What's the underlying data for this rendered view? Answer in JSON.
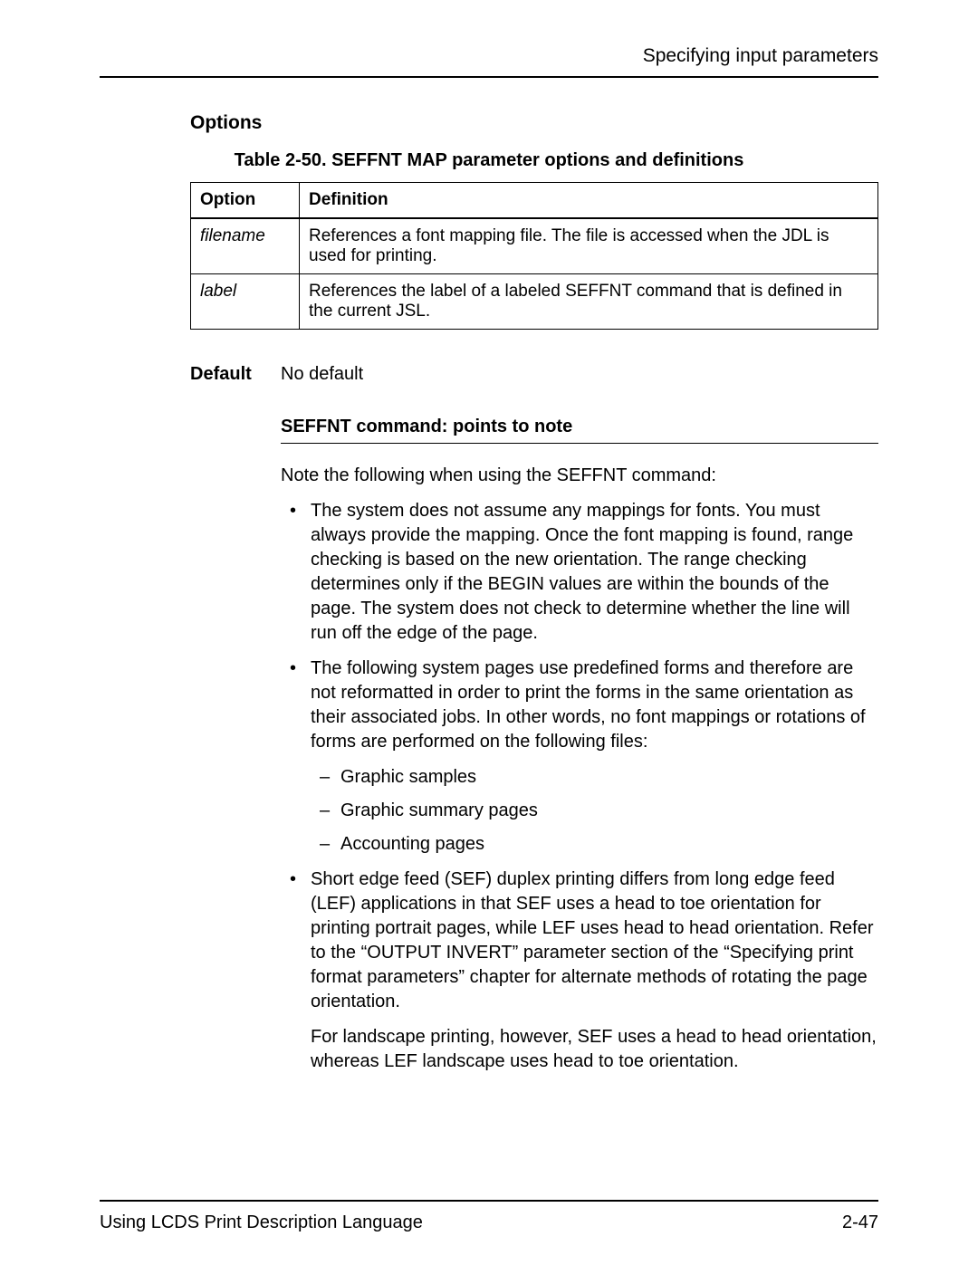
{
  "header": {
    "chapter_title": "Specifying input parameters"
  },
  "options": {
    "heading": "Options",
    "table_caption": "Table 2-50. SEFFNT MAP parameter options and definitions",
    "columns": [
      "Option",
      "Definition"
    ],
    "rows": [
      {
        "option": "filename",
        "definition": "References a font mapping file. The file is accessed when the JDL is used for printing."
      },
      {
        "option": "label",
        "definition": "References the label of a labeled SEFFNT command that is defined in the current JSL."
      }
    ]
  },
  "default": {
    "label": "Default",
    "value": "No default"
  },
  "notes": {
    "heading": "SEFFNT command: points to note",
    "intro": "Note the following when using the SEFFNT command:",
    "bullets": [
      {
        "text": "The system does not assume any mappings for fonts. You must always provide the mapping. Once the font mapping is found, range checking is based on the new orientation. The range checking determines only if the BEGIN values are within the bounds of the page. The system does not check to determine whether the line will run off the edge of the page."
      },
      {
        "text": "The following system pages use predefined forms and therefore are not reformatted in order to print the forms in the same orientation as their associated jobs. In other words, no font mappings or rotations of forms are performed on the following files:",
        "sublist": [
          "Graphic samples",
          "Graphic summary pages",
          "Accounting pages"
        ]
      },
      {
        "text": "Short edge feed (SEF) duplex printing differs from long edge feed (LEF) applications in that SEF uses a head to toe orientation for printing portrait pages, while LEF uses head to head orientation. Refer to the “OUTPUT INVERT” parameter section of the “Specifying print format parameters” chapter for alternate methods of rotating the page orientation.",
        "extra": "For landscape printing, however, SEF uses a head to head orientation, whereas LEF landscape uses head to toe orientation."
      }
    ]
  },
  "footer": {
    "doc_title": "Using LCDS Print Description Language",
    "page_number": "2-47"
  }
}
